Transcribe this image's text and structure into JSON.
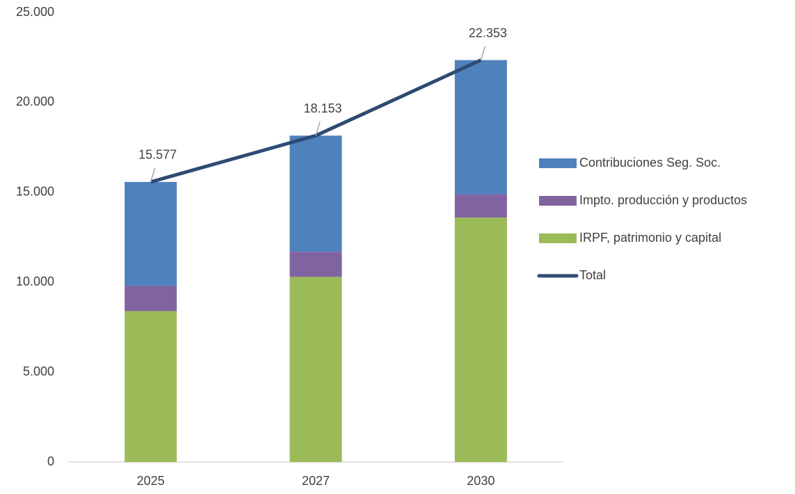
{
  "chart_data": {
    "type": "stacked-bar-line",
    "categories": [
      "2025",
      "2027",
      "2030"
    ],
    "series": [
      {
        "name": "IRPF, patrimonio y capital",
        "color": "#9bbb59",
        "type": "bar",
        "values": [
          8400,
          10300,
          13600
        ]
      },
      {
        "name": "Impto. producción y productos",
        "color": "#8064a2",
        "type": "bar",
        "values": [
          1400,
          1400,
          1300
        ]
      },
      {
        "name": "Contribuciones Seg. Soc.",
        "color": "#4f81bd",
        "type": "bar",
        "values": [
          5777,
          6453,
          7453
        ]
      },
      {
        "name": "Total",
        "color": "#2e4b73",
        "type": "line",
        "values": [
          15577,
          18153,
          22353
        ],
        "value_labels": [
          "15.577",
          "18.153",
          "22.353"
        ]
      }
    ],
    "ylim": [
      0,
      25000
    ],
    "yticks": [
      0,
      {
        "value": 5000,
        "label": "5.000"
      },
      {
        "value": 10000,
        "label": "10.000"
      },
      {
        "value": 15000,
        "label": "15.000"
      },
      {
        "value": 20000,
        "label": "20.000"
      },
      {
        "value": 25000,
        "label": "25.000"
      }
    ],
    "legend": "right"
  }
}
